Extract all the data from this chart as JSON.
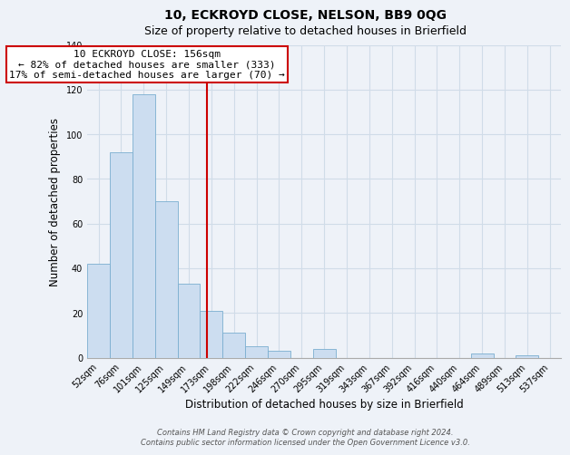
{
  "title": "10, ECKROYD CLOSE, NELSON, BB9 0QG",
  "subtitle": "Size of property relative to detached houses in Brierfield",
  "xlabel": "Distribution of detached houses by size in Brierfield",
  "ylabel": "Number of detached properties",
  "bin_labels": [
    "52sqm",
    "76sqm",
    "101sqm",
    "125sqm",
    "149sqm",
    "173sqm",
    "198sqm",
    "222sqm",
    "246sqm",
    "270sqm",
    "295sqm",
    "319sqm",
    "343sqm",
    "367sqm",
    "392sqm",
    "416sqm",
    "440sqm",
    "464sqm",
    "489sqm",
    "513sqm",
    "537sqm"
  ],
  "bar_heights": [
    42,
    92,
    118,
    70,
    33,
    21,
    11,
    5,
    3,
    0,
    4,
    0,
    0,
    0,
    0,
    0,
    0,
    2,
    0,
    1,
    0
  ],
  "bar_color": "#ccddf0",
  "bar_edge_color": "#7aaed0",
  "vline_color": "#cc0000",
  "annotation_text": "10 ECKROYD CLOSE: 156sqm\n← 82% of detached houses are smaller (333)\n17% of semi-detached houses are larger (70) →",
  "annotation_box_color": "#ffffff",
  "annotation_box_edge": "#cc0000",
  "ylim": [
    0,
    140
  ],
  "yticks": [
    0,
    20,
    40,
    60,
    80,
    100,
    120,
    140
  ],
  "grid_color": "#d0dce8",
  "footer1": "Contains HM Land Registry data © Crown copyright and database right 2024.",
  "footer2": "Contains public sector information licensed under the Open Government Licence v3.0.",
  "background_color": "#eef2f8",
  "plot_background": "#eef2f8",
  "title_fontsize": 10,
  "subtitle_fontsize": 9,
  "axis_label_fontsize": 8.5,
  "tick_fontsize": 7,
  "annotation_fontsize": 8,
  "footer_fontsize": 6
}
